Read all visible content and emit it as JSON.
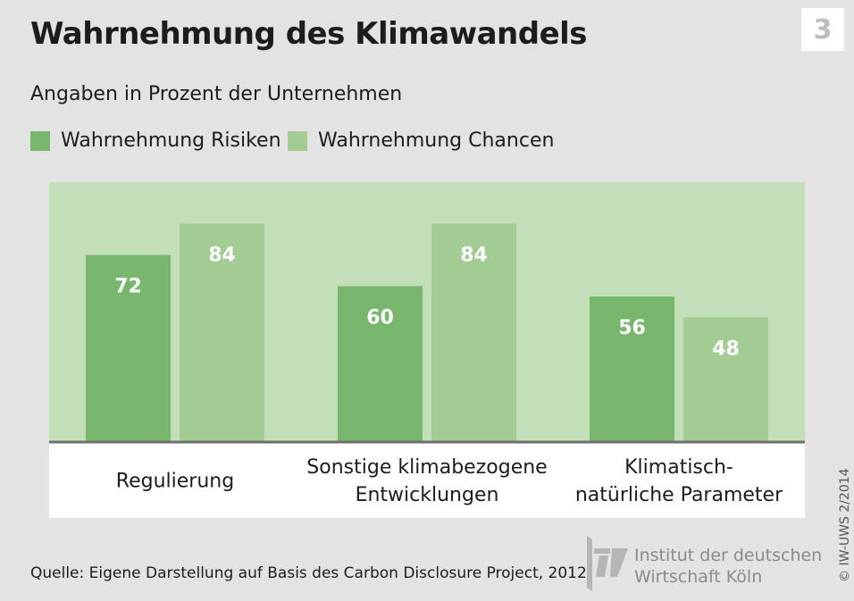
{
  "header": {
    "title": "Wahrnehmung des Klimawandels",
    "number": "3",
    "subtitle": "Angaben in Prozent der Unternehmen"
  },
  "colors": {
    "risiken": "#78b66e",
    "chancen": "#a3cb94",
    "plot_bg": "#c2dfba",
    "baseline": "#6e6e6e"
  },
  "chart_data": {
    "type": "bar",
    "title": "Wahrnehmung des Klimawandels",
    "subtitle": "Angaben in Prozent der Unternehmen",
    "categories": [
      [
        "Regulierung"
      ],
      [
        "Sonstige klimabezogene",
        "Entwicklungen"
      ],
      [
        "Klimatisch-",
        "natürliche Parameter"
      ]
    ],
    "series": [
      {
        "name": "Wahrnehmung Risiken",
        "values": [
          72,
          60,
          56
        ]
      },
      {
        "name": "Wahrnehmung Chancen",
        "values": [
          84,
          84,
          48
        ]
      }
    ],
    "ylim": [
      0,
      100
    ],
    "grid": false,
    "legend": "top-left",
    "data_labels": true
  },
  "footer": {
    "source": "Quelle: Eigene Darstellung auf Basis des Carbon Disclosure Project, 2012",
    "logo_line1": "Institut der deutschen",
    "logo_line2": "Wirtschaft Köln",
    "copyright": "© IW-UWS 2/2014"
  }
}
